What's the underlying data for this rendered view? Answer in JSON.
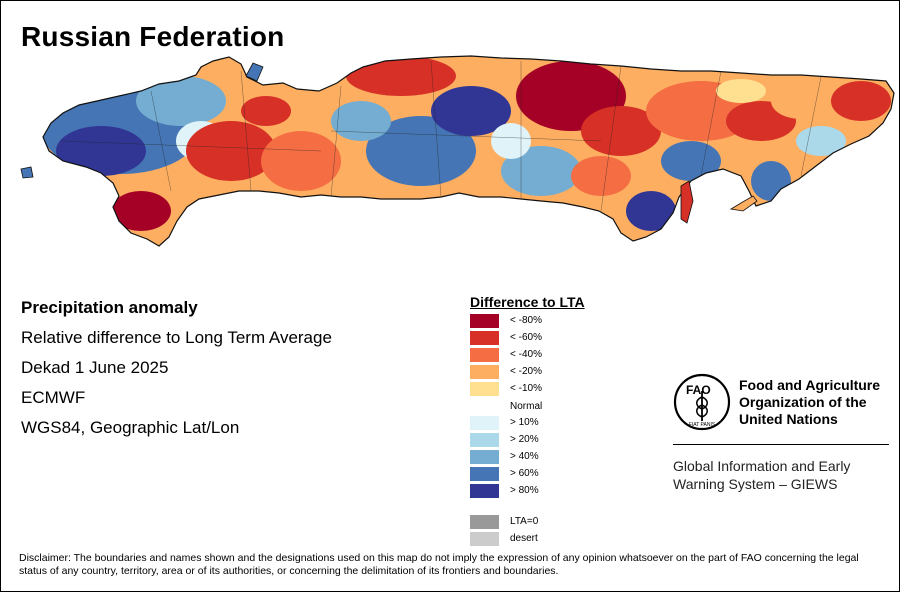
{
  "title": "Russian Federation",
  "meta": {
    "product": "Precipitation anomaly",
    "description": "Relative difference to Long Term Average",
    "period": "Dekad 1 June 2025",
    "source": "ECMWF",
    "projection": "WGS84, Geographic Lat/Lon"
  },
  "legend": {
    "title": "Difference to LTA",
    "dry_classes": [
      {
        "label": "< -80%",
        "color": "#a50026"
      },
      {
        "label": "< -60%",
        "color": "#d73027"
      },
      {
        "label": "< -40%",
        "color": "#f46d43"
      },
      {
        "label": "< -20%",
        "color": "#fdae61"
      },
      {
        "label": "< -10%",
        "color": "#fee090"
      }
    ],
    "normal_label": "Normal",
    "wet_classes": [
      {
        "label": "> 10%",
        "color": "#e0f3f8"
      },
      {
        "label": "> 20%",
        "color": "#abd9e9"
      },
      {
        "label": "> 40%",
        "color": "#74add1"
      },
      {
        "label": "> 60%",
        "color": "#4575b4"
      },
      {
        "label": "> 80%",
        "color": "#313695"
      }
    ],
    "special_classes": [
      {
        "label": "LTA=0",
        "color": "#999999"
      },
      {
        "label": "desert",
        "color": "#cccccc"
      }
    ]
  },
  "fao": {
    "logo_letters": "FAO",
    "logo_motto": "FIAT PANIS",
    "name_line1": "Food and Agriculture",
    "name_line2": "Organization of the",
    "name_line3": "United Nations",
    "giews_line1": "Global Information and Early",
    "giews_line2": "Warning System – GIEWS"
  },
  "disclaimer": "Disclaimer: The boundaries and names shown and the designations used on this map do not imply the expression of any opinion whatsoever on the part of FAO concerning the legal status of any country, territory, area or of its authorities, or concerning the delimitation of its frontiers and boundaries."
}
